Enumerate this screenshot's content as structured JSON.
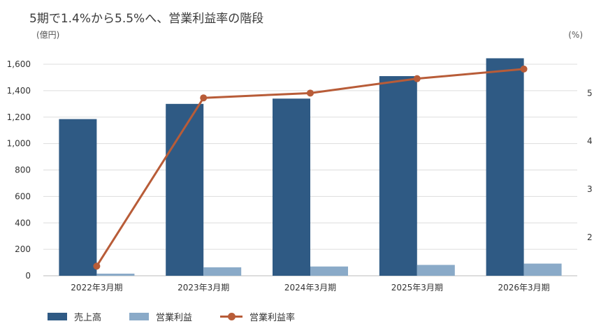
{
  "chart_data": {
    "type": "bar",
    "title": "5期で1.4%から5.5%へ、営業利益率の階段",
    "y_left_unit": "(億円)",
    "y_right_unit": "(%)",
    "categories": [
      "2022年3月期",
      "2023年3月期",
      "2024年3月期",
      "2025年3月期",
      "2026年3月期"
    ],
    "series": [
      {
        "name": "売上高",
        "type": "bar",
        "axis": "left",
        "color": "#2f5a84",
        "values": [
          1185,
          1300,
          1340,
          1510,
          1645
        ]
      },
      {
        "name": "営業利益",
        "type": "bar",
        "axis": "left",
        "color": "#8aaac8",
        "values": [
          16,
          64,
          70,
          82,
          92
        ]
      },
      {
        "name": "営業利益率",
        "type": "line",
        "axis": "right",
        "color": "#b85c38",
        "values": [
          1.4,
          4.9,
          5.0,
          5.3,
          5.5
        ]
      }
    ],
    "y_left": {
      "min": 0,
      "max": 1600,
      "ticks": [
        "0",
        "200",
        "400",
        "600",
        "800",
        "1,000",
        "1,200",
        "1,400",
        "1,600"
      ]
    },
    "y_right": {
      "min": 1.2,
      "max": 5.6,
      "ticks": [
        "2",
        "3",
        "4",
        "5"
      ]
    },
    "grid": true,
    "legend_position": "bottom-left"
  }
}
